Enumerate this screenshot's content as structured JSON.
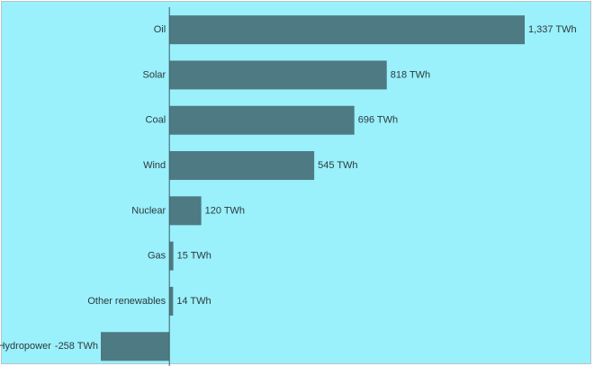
{
  "chart_data": {
    "type": "hbar",
    "categories": [
      "Oil",
      "Solar",
      "Coal",
      "Wind",
      "Nuclear",
      "Gas",
      "Other renewables",
      "Hydropower"
    ],
    "values": [
      1337,
      818,
      696,
      545,
      120,
      15,
      14,
      -258
    ],
    "value_labels": [
      "1,337 TWh",
      "818 TWh",
      "696 TWh",
      "545 TWh",
      "120 TWh",
      "15 TWh",
      "14 TWh",
      "-258 TWh"
    ],
    "color": "#4e7a83",
    "background": "#9af0fb"
  }
}
